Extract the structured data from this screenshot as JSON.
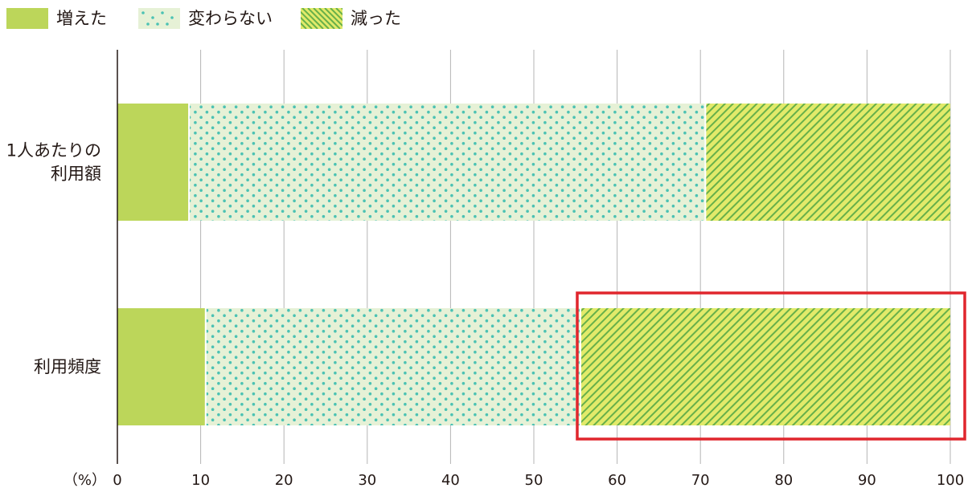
{
  "legend": [
    {
      "label": "増えた",
      "pattern": "solid"
    },
    {
      "label": "変わらない",
      "pattern": "dots"
    },
    {
      "label": "減った",
      "pattern": "stripes"
    }
  ],
  "colors": {
    "increase": "#bcd65a",
    "same_bg": "#e6f1d6",
    "same_dot": "#4cc2b3",
    "decrease_bg": "#e2ea6a",
    "decrease_line": "#67b04a",
    "axis": "#231815",
    "grid": "#b5b5b5",
    "highlight": "#e0262d"
  },
  "chart_data": {
    "type": "bar",
    "orientation": "horizontal",
    "stacked": true,
    "categories": [
      "1人あたりの\n利用額",
      "利用頻度"
    ],
    "series": [
      {
        "name": "増えた",
        "values": [
          8.5,
          10.5
        ]
      },
      {
        "name": "変わらない",
        "values": [
          62.0,
          45.0
        ]
      },
      {
        "name": "減った",
        "values": [
          29.5,
          44.5
        ]
      }
    ],
    "xlim": [
      0,
      100
    ],
    "xticks": [
      0,
      10,
      20,
      30,
      40,
      50,
      60,
      70,
      80,
      90,
      100
    ],
    "xunit": "（%）",
    "grid": true,
    "legend_position": "top-left",
    "highlight": {
      "category": "利用頻度",
      "series": "減った"
    }
  }
}
